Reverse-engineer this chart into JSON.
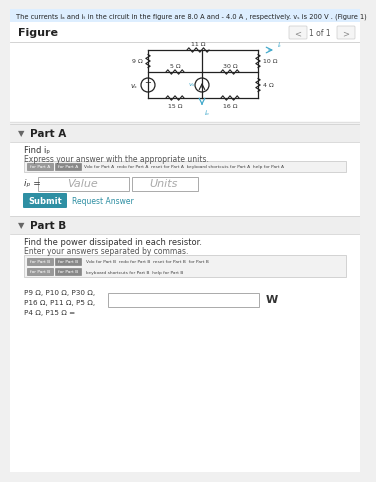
{
  "title_text": "The currents iₐ and iₜ in the circuit in the figure are 8.0 A and - 4.0 A , respectively. vₛ is 200 V . (Figure 1)",
  "figure_label": "Figure",
  "page_label": "1 of 1",
  "bg_color": "#f0f0f0",
  "title_bg": "#ddeeff",
  "panel_bg": "#ffffff",
  "part_a_label": "Part A",
  "part_a_find": "Find iₚ",
  "part_a_inst": "Express your answer with the appropriate units.",
  "part_a_value_placeholder": "Value",
  "part_a_units_placeholder": "Units",
  "submit_text": "Submit",
  "request_answer_text": "Request Answer",
  "part_b_label": "Part B",
  "part_b_find": "Find the power dissipated in each resistor.",
  "part_b_inst": "Enter your answers separated by commas.",
  "part_b_unit": "W",
  "section_divider_color": "#cccccc",
  "teal_color": "#2e8fa3",
  "submit_bg": "#2e8fa3",
  "toolbar_bg": "#aaaaaa",
  "circuit_wire_color": "#222222",
  "circuit_text_color": "#333333",
  "arrow_color": "#44aacc"
}
